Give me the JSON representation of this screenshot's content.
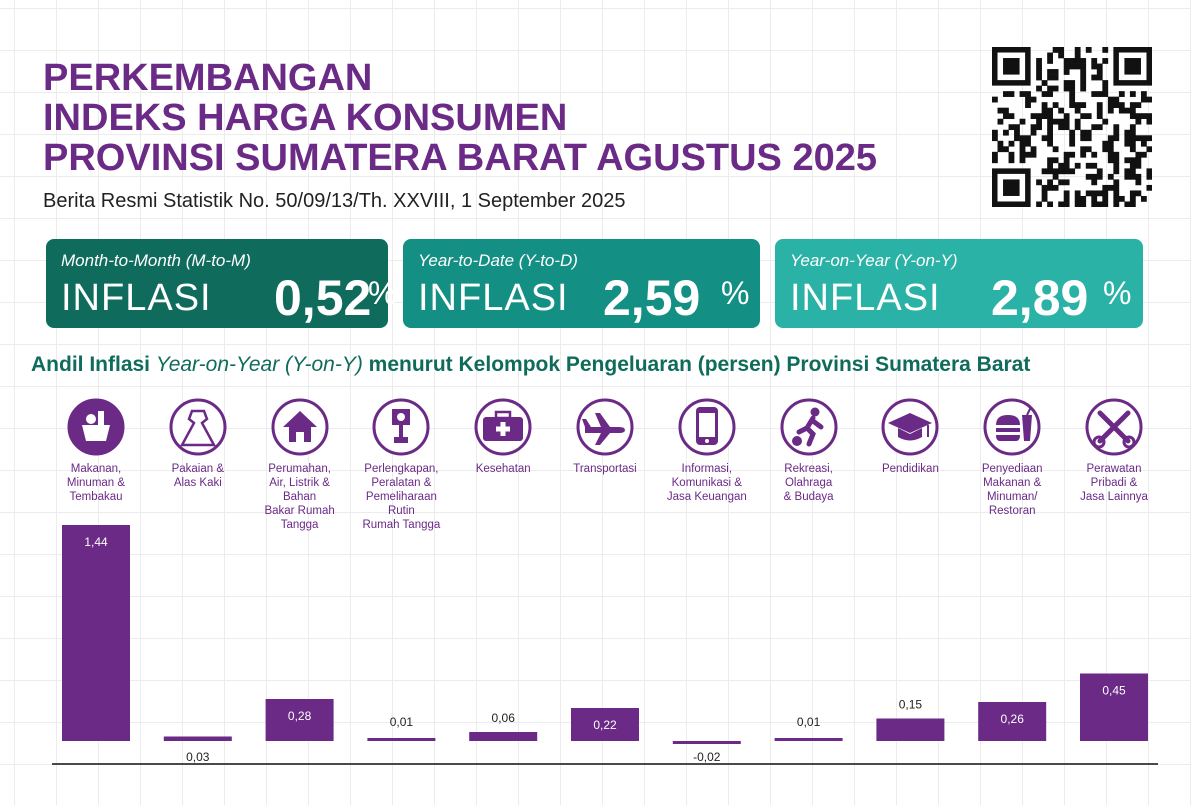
{
  "header": {
    "title_lines": [
      "PERKEMBANGAN",
      "INDEKS HARGA KONSUMEN",
      "PROVINSI SUMATERA BARAT AGUSTUS 2025"
    ],
    "subtitle": "Berita Resmi Statistik No. 50/09/13/Th. XXVIII, 1 September 2025"
  },
  "cards": [
    {
      "label": "Month-to-Month (M-to-M)",
      "word": "INFLASI",
      "value": "0,52",
      "unit": "%",
      "color": "#0f6b5b"
    },
    {
      "label": "Year-to-Date (Y-to-D)",
      "word": "INFLASI",
      "value": "2,59",
      "unit": "%",
      "color": "#148f84"
    },
    {
      "label": "Year-on-Year (Y-on-Y)",
      "word": "INFLASI",
      "value": "2,89",
      "unit": "%",
      "color": "#2bb2a6"
    }
  ],
  "colors": {
    "accent": "#6a2a86",
    "green": "#0f6b5b"
  },
  "chart_data": {
    "type": "bar",
    "title_parts": [
      "Andil Inflasi ",
      "Year-on-Year (Y-on-Y)",
      " menurut Kelompok Pengeluaran (persen) Provinsi Sumatera Barat"
    ],
    "categories": [
      "Makanan, Minuman & Tembakau",
      "Pakaian & Alas Kaki",
      "Perumahan, Air, Listrik & Bahan Bakar Rumah Tangga",
      "Perlengkapan, Peralatan & Pemeliharaan Rutin Rumah Tangga",
      "Kesehatan",
      "Transportasi",
      "Informasi, Komunikasi & Jasa Keuangan",
      "Rekreasi, Olahraga & Budaya",
      "Pendidikan",
      "Penyediaan Makanan & Minuman/ Restoran",
      "Perawatan Pribadi & Jasa Lainnya"
    ],
    "label_lines": [
      [
        "Makanan,",
        "Minuman &",
        "Tembakau"
      ],
      [
        "Pakaian &",
        "Alas Kaki"
      ],
      [
        "Perumahan,",
        "Air, Listrik &",
        "Bahan",
        "Bakar Rumah",
        "Tangga"
      ],
      [
        "Perlengkapan,",
        "Peralatan &",
        "Pemeliharaan",
        "Rutin",
        "Rumah Tangga"
      ],
      [
        "Kesehatan"
      ],
      [
        "Transportasi"
      ],
      [
        "Informasi,",
        "Komunikasi &",
        "Jasa Keuangan"
      ],
      [
        "Rekreasi,",
        "Olahraga",
        "& Budaya"
      ],
      [
        "Pendidikan"
      ],
      [
        "Penyediaan",
        "Makanan &",
        "Minuman/",
        "Restoran"
      ],
      [
        "Perawatan",
        "Pribadi &",
        "Jasa Lainnya"
      ]
    ],
    "icons": [
      "food-basket-icon",
      "dress-icon",
      "house-icon",
      "plug-icon",
      "medical-kit-icon",
      "airplane-icon",
      "smartphone-icon",
      "sport-player-icon",
      "graduation-cap-icon",
      "fast-food-icon",
      "scissors-comb-icon"
    ],
    "values": [
      1.44,
      0.03,
      0.28,
      0.01,
      0.06,
      0.22,
      -0.02,
      0.01,
      0.15,
      0.26,
      0.45
    ],
    "value_labels": [
      "1,44",
      "0,03",
      "0,28",
      "0,01",
      "0,06",
      "0,22",
      "-0,02",
      "0,01",
      "0,15",
      "0,26",
      "0,45"
    ],
    "ylim": [
      -0.02,
      1.44
    ],
    "grid": true
  }
}
